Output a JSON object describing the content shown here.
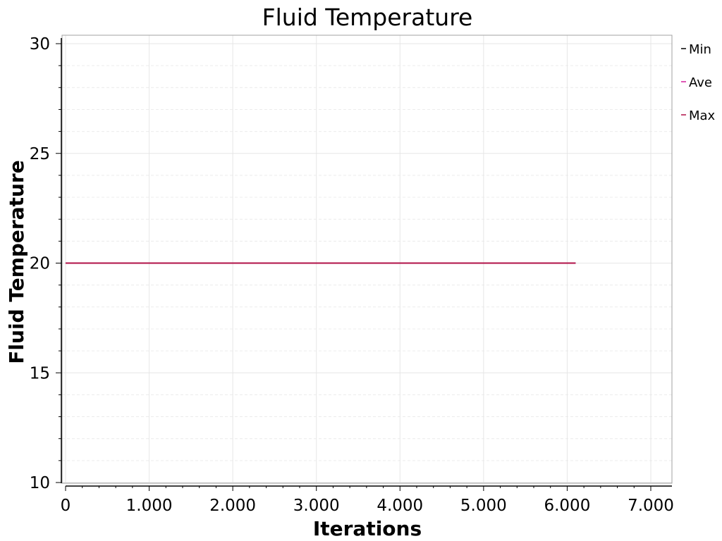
{
  "chart_data": {
    "type": "line",
    "title": "Fluid Temperature",
    "xlabel": "Iterations",
    "ylabel": "Fluid Temperature",
    "xlim": [
      0,
      7000
    ],
    "ylim": [
      10,
      30
    ],
    "x_ticks": [
      0,
      1000,
      2000,
      3000,
      4000,
      5000,
      6000,
      7000
    ],
    "x_tick_labels": [
      "0",
      "1.000",
      "2.000",
      "3.000",
      "4.000",
      "5.000",
      "6.000",
      "7.000"
    ],
    "y_ticks": [
      10,
      15,
      20,
      25,
      30
    ],
    "y_tick_labels": [
      "10",
      "15",
      "20",
      "25",
      "30"
    ],
    "grid": true,
    "legend_position": "right",
    "series": [
      {
        "name": "Min",
        "color": "#000000",
        "x": [
          0,
          6100
        ],
        "y": [
          20,
          20
        ]
      },
      {
        "name": "Ave",
        "color": "#d4209c",
        "x": [
          0,
          6100
        ],
        "y": [
          20,
          20
        ]
      },
      {
        "name": "Max",
        "color": "#b01047",
        "x": [
          0,
          6100
        ],
        "y": [
          20,
          20
        ]
      }
    ]
  }
}
